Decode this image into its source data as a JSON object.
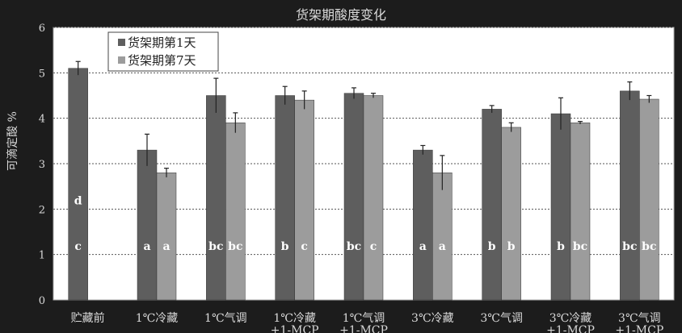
{
  "chart_data": {
    "type": "bar",
    "title": "货架期酸度变化",
    "ylabel": "可滴定酸 %",
    "ylim": [
      0,
      6
    ],
    "yticks": [
      0,
      1,
      2,
      3,
      4,
      5,
      6
    ],
    "grid": true,
    "legend_position": "top-left",
    "categories": [
      "贮藏前",
      "1℃冷藏",
      "1℃气调",
      "1℃冷藏+1-MCP",
      "1℃气调+1-MCP",
      "3℃冷藏",
      "3℃气调",
      "3℃冷藏+1-MCP",
      "3℃气调+1-MCP"
    ],
    "category_labels": [
      [
        "贮藏前"
      ],
      [
        "1℃冷藏"
      ],
      [
        "1℃气调"
      ],
      [
        "1℃冷藏",
        "+1-MCP"
      ],
      [
        "1℃气调",
        "+1-MCP"
      ],
      [
        "3℃冷藏"
      ],
      [
        "3℃气调"
      ],
      [
        "3℃冷藏",
        "+1-MCP"
      ],
      [
        "3℃气调",
        "+1-MCP"
      ]
    ],
    "series": [
      {
        "name": "货架期第1天",
        "color": "#5e5e5e",
        "values": [
          5.1,
          3.3,
          4.5,
          4.5,
          4.55,
          3.3,
          4.2,
          4.1,
          4.6
        ],
        "errors": [
          0.15,
          0.35,
          0.38,
          0.2,
          0.12,
          0.1,
          0.08,
          0.35,
          0.2
        ],
        "letters": [
          "c",
          "a",
          "bc",
          "b",
          "bc",
          "a",
          "b",
          "b",
          "bc"
        ]
      },
      {
        "name": "货架期第7天",
        "color": "#9c9c9c",
        "values": [
          null,
          2.8,
          3.9,
          4.4,
          4.5,
          2.8,
          3.8,
          3.9,
          4.42
        ],
        "errors": [
          null,
          0.1,
          0.22,
          0.2,
          0.05,
          0.38,
          0.1,
          0.03,
          0.08
        ],
        "letters": [
          null,
          "a",
          "bc",
          "c",
          "c",
          "a",
          "b",
          "bc",
          "bc"
        ]
      }
    ],
    "top_letters": [
      "d",
      null,
      null,
      null,
      null,
      null,
      null,
      null,
      null
    ]
  }
}
